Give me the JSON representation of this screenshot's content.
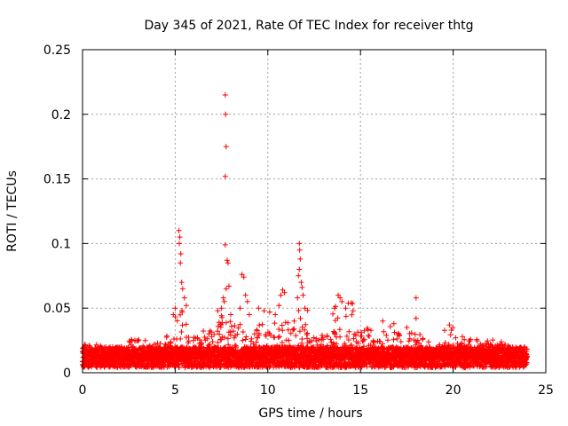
{
  "chart_data": {
    "type": "scatter",
    "title": "Day 345 of 2021, Rate Of TEC Index for receiver thtg",
    "xlabel": "GPS time / hours",
    "ylabel": "ROTI / TECUs",
    "xlim": [
      0,
      25
    ],
    "ylim": [
      0,
      0.25
    ],
    "xticks": [
      0,
      5,
      10,
      15,
      20,
      25
    ],
    "xtick_labels": [
      "0",
      "5",
      "10",
      "15",
      "20",
      "25"
    ],
    "yticks": [
      0,
      0.05,
      0.1,
      0.15,
      0.2,
      0.25
    ],
    "ytick_labels": [
      "0",
      "0.05",
      "0.1",
      "0.15",
      "0.2",
      "0.25"
    ],
    "grid": true,
    "legend": "none",
    "marker": "plus",
    "color": "#ff0000",
    "x_range_hours": [
      0,
      24
    ],
    "base_band": [
      0.004,
      0.02
    ],
    "activity_profile": [
      {
        "x": [
          0.0,
          1.0
        ],
        "ymax": 0.022
      },
      {
        "x": [
          1.0,
          2.5
        ],
        "ymax": 0.02
      },
      {
        "x": [
          2.5,
          3.5
        ],
        "ymax": 0.026
      },
      {
        "x": [
          3.5,
          4.5
        ],
        "ymax": 0.023
      },
      {
        "x": [
          4.5,
          5.0
        ],
        "ymax": 0.032
      },
      {
        "x": [
          5.0,
          5.6
        ],
        "ymax": 0.05
      },
      {
        "x": [
          5.6,
          6.5
        ],
        "ymax": 0.028
      },
      {
        "x": [
          6.5,
          7.3
        ],
        "ymax": 0.034
      },
      {
        "x": [
          7.3,
          8.3
        ],
        "ymax": 0.045
      },
      {
        "x": [
          8.3,
          9.8
        ],
        "ymax": 0.038
      },
      {
        "x": [
          9.8,
          10.6
        ],
        "ymax": 0.042
      },
      {
        "x": [
          10.6,
          11.5
        ],
        "ymax": 0.04
      },
      {
        "x": [
          11.5,
          12.2
        ],
        "ymax": 0.05
      },
      {
        "x": [
          12.2,
          13.5
        ],
        "ymax": 0.03
      },
      {
        "x": [
          13.5,
          14.6
        ],
        "ymax": 0.055
      },
      {
        "x": [
          14.6,
          15.6
        ],
        "ymax": 0.035
      },
      {
        "x": [
          15.6,
          17.0
        ],
        "ymax": 0.038
      },
      {
        "x": [
          17.0,
          18.5
        ],
        "ymax": 0.032
      },
      {
        "x": [
          18.5,
          19.5
        ],
        "ymax": 0.025
      },
      {
        "x": [
          19.5,
          20.2
        ],
        "ymax": 0.036
      },
      {
        "x": [
          20.2,
          22.3
        ],
        "ymax": 0.026
      },
      {
        "x": [
          22.3,
          23.0
        ],
        "ymax": 0.023
      },
      {
        "x": [
          23.0,
          24.0
        ],
        "ymax": 0.02
      }
    ],
    "outliers": [
      {
        "x": 5.2,
        "y": 0.11
      },
      {
        "x": 5.25,
        "y": 0.105
      },
      {
        "x": 5.22,
        "y": 0.1
      },
      {
        "x": 5.3,
        "y": 0.092
      },
      {
        "x": 5.28,
        "y": 0.085
      },
      {
        "x": 5.35,
        "y": 0.07
      },
      {
        "x": 5.4,
        "y": 0.065
      },
      {
        "x": 5.5,
        "y": 0.058
      },
      {
        "x": 5.6,
        "y": 0.052
      },
      {
        "x": 4.9,
        "y": 0.045
      },
      {
        "x": 5.0,
        "y": 0.05
      },
      {
        "x": 7.7,
        "y": 0.215
      },
      {
        "x": 7.72,
        "y": 0.2
      },
      {
        "x": 7.75,
        "y": 0.175
      },
      {
        "x": 7.7,
        "y": 0.152
      },
      {
        "x": 7.7,
        "y": 0.099
      },
      {
        "x": 7.8,
        "y": 0.087
      },
      {
        "x": 7.85,
        "y": 0.085
      },
      {
        "x": 7.9,
        "y": 0.067
      },
      {
        "x": 7.75,
        "y": 0.065
      },
      {
        "x": 7.6,
        "y": 0.058
      },
      {
        "x": 7.65,
        "y": 0.055
      },
      {
        "x": 7.5,
        "y": 0.05
      },
      {
        "x": 7.3,
        "y": 0.048
      },
      {
        "x": 8.0,
        "y": 0.045
      },
      {
        "x": 8.6,
        "y": 0.076
      },
      {
        "x": 8.7,
        "y": 0.074
      },
      {
        "x": 8.8,
        "y": 0.06
      },
      {
        "x": 8.9,
        "y": 0.055
      },
      {
        "x": 8.5,
        "y": 0.05
      },
      {
        "x": 9.0,
        "y": 0.045
      },
      {
        "x": 9.5,
        "y": 0.05
      },
      {
        "x": 9.8,
        "y": 0.048
      },
      {
        "x": 10.1,
        "y": 0.047
      },
      {
        "x": 10.4,
        "y": 0.045
      },
      {
        "x": 10.8,
        "y": 0.064
      },
      {
        "x": 10.9,
        "y": 0.062
      },
      {
        "x": 10.7,
        "y": 0.06
      },
      {
        "x": 10.6,
        "y": 0.052
      },
      {
        "x": 11.7,
        "y": 0.1
      },
      {
        "x": 11.72,
        "y": 0.095
      },
      {
        "x": 11.75,
        "y": 0.088
      },
      {
        "x": 11.7,
        "y": 0.08
      },
      {
        "x": 11.65,
        "y": 0.075
      },
      {
        "x": 11.8,
        "y": 0.07
      },
      {
        "x": 11.85,
        "y": 0.066
      },
      {
        "x": 11.9,
        "y": 0.06
      },
      {
        "x": 11.6,
        "y": 0.058
      },
      {
        "x": 12.0,
        "y": 0.05
      },
      {
        "x": 13.8,
        "y": 0.06
      },
      {
        "x": 13.9,
        "y": 0.058
      },
      {
        "x": 14.0,
        "y": 0.055
      },
      {
        "x": 14.2,
        "y": 0.05
      },
      {
        "x": 14.5,
        "y": 0.054
      },
      {
        "x": 14.6,
        "y": 0.048
      },
      {
        "x": 13.6,
        "y": 0.05
      },
      {
        "x": 16.2,
        "y": 0.04
      },
      {
        "x": 17.5,
        "y": 0.035
      },
      {
        "x": 18.0,
        "y": 0.058
      },
      {
        "x": 18.0,
        "y": 0.042
      },
      {
        "x": 19.8,
        "y": 0.037
      },
      {
        "x": 19.9,
        "y": 0.033
      },
      {
        "x": 20.5,
        "y": 0.028
      },
      {
        "x": 22.6,
        "y": 0.024
      }
    ]
  }
}
